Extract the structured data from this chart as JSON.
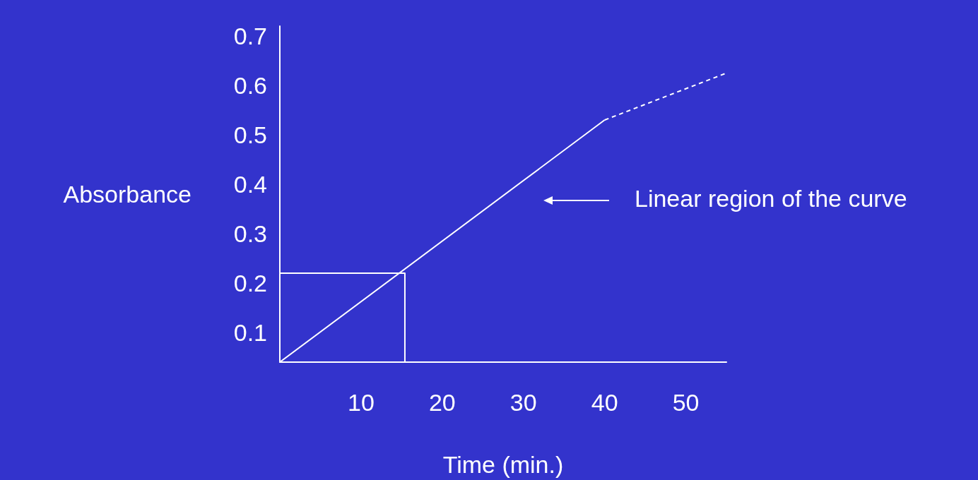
{
  "chart_data": {
    "type": "line",
    "xlabel": "Time (min.)",
    "ylabel": "Absorbance",
    "xlim": [
      0,
      55
    ],
    "xticks": [
      10,
      20,
      30,
      40,
      50
    ],
    "ylim": [
      0.04,
      0.72
    ],
    "yticks": [
      0.1,
      0.2,
      0.3,
      0.4,
      0.5,
      0.6,
      0.7
    ],
    "grid": false,
    "marker": "none",
    "series": [
      {
        "color": "#ffffff",
        "x": [
          0,
          40
        ],
        "values": [
          0.04,
          0.53
        ],
        "line_style": "solid"
      },
      {
        "color": "#ffffff",
        "x": [
          40,
          55
        ],
        "values": [
          0.53,
          0.625
        ],
        "line_style": "dashed"
      },
      {
        "color": "#ffffff",
        "x": [
          0,
          15.4,
          15.4
        ],
        "values": [
          0.22,
          0.22,
          0.04
        ],
        "line_style": "solid"
      }
    ],
    "annotations": [
      "Linear region of the curve"
    ]
  }
}
